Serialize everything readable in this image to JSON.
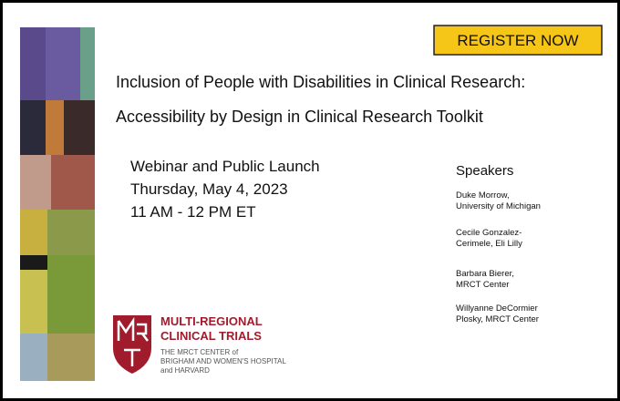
{
  "button": {
    "label": "REGISTER NOW"
  },
  "title": {
    "lines": [
      "Inclusion of People with Disabilities in Clinical Research:",
      "Accessibility by  Design in Clinical Research Toolkit"
    ]
  },
  "event": {
    "lines": [
      "Webinar and Public Launch",
      "Thursday, May 4, 2023",
      "11 AM - 12 PM ET"
    ]
  },
  "speakers": {
    "heading": "Speakers",
    "people": [
      {
        "lines": [
          "Duke Morrow,",
          "University of Michigan"
        ]
      },
      {
        "lines": [
          "Cecile Gonzalez-",
          "Cerimele, Eli Lilly"
        ]
      },
      {
        "lines": [
          "Barbara Bierer,",
          "MRCT Center"
        ]
      },
      {
        "lines": [
          "Willyanne DeCormier",
          "Plosky, MRCT Center"
        ]
      }
    ]
  },
  "logo": {
    "name_lines": [
      "MULTI-REGIONAL",
      "CLINICAL TRIALS"
    ],
    "sub_lines": [
      "THE MRCT CENTER of",
      "BRIGHAM AND WOMEN'S HOSPITAL",
      "and HARVARD"
    ]
  }
}
